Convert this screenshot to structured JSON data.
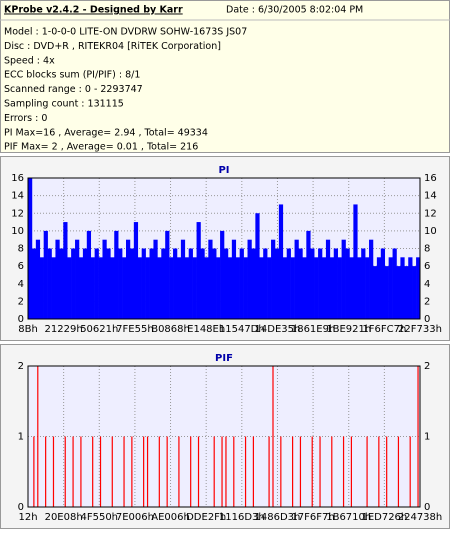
{
  "header": {
    "title": "KProbe v2.4.2 - Designed by Karr",
    "date": "Date : 6/30/2005 8:02:04 PM",
    "lines": [
      "Model : 1-0-0-0 LITE-ON DVDRW SOHW-1673S JS07",
      "Disc : DVD+R , RITEKR04 [RiTEK Corporation]",
      "Speed : 4x",
      "ECC blocks sum (PI/PIF) : 8/1",
      "Scanned range : 0 - 2293747",
      "Sampling count : 131115",
      "Errors : 0",
      "PI Max=16 , Average= 2.94 , Total= 49334",
      "PIF Max= 2 , Average= 0.01 , Total= 216"
    ]
  },
  "chart_data": [
    {
      "type": "bar",
      "title": "PI",
      "color": "#0000ff",
      "grid": true,
      "ylim": [
        0,
        16
      ],
      "yticks": [
        0,
        2,
        4,
        6,
        8,
        10,
        12,
        14,
        16
      ],
      "x_labels": [
        "8Bh",
        "21229h",
        "50621h",
        "7FE55h",
        "B0868h",
        "E148Eh",
        "11547Dh",
        "14DE35h",
        "1861E9h",
        "1BE921h",
        "1F6FC7h",
        "22F733h"
      ],
      "values": [
        16,
        8,
        9,
        7,
        10,
        8,
        7,
        9,
        8,
        11,
        7,
        8,
        9,
        7,
        8,
        10,
        7,
        8,
        7,
        9,
        8,
        7,
        10,
        8,
        7,
        9,
        8,
        11,
        7,
        8,
        7,
        8,
        9,
        7,
        8,
        10,
        7,
        8,
        7,
        9,
        7,
        8,
        7,
        11,
        8,
        7,
        9,
        8,
        7,
        10,
        8,
        7,
        9,
        7,
        8,
        7,
        9,
        8,
        12,
        7,
        8,
        7,
        9,
        8,
        13,
        7,
        8,
        7,
        9,
        8,
        7,
        10,
        8,
        7,
        8,
        7,
        9,
        7,
        8,
        7,
        9,
        8,
        7,
        13,
        7,
        8,
        7,
        9,
        6,
        7,
        8,
        6,
        7,
        8,
        6,
        7,
        6,
        7,
        6,
        7
      ]
    },
    {
      "type": "spike",
      "title": "PIF",
      "color": "#ff0000",
      "grid": true,
      "ylim": [
        0,
        2
      ],
      "yticks": [
        0,
        1,
        2
      ],
      "x_labels": [
        "12h",
        "20E08h",
        "4F550h",
        "7E006h",
        "AE006h",
        "DDE2Fh",
        "1116D3h",
        "1486D3h",
        "17F6F7h",
        "1B6710h",
        "1ED726h",
        "224738h"
      ],
      "values": [
        0,
        1,
        2,
        0,
        1,
        0,
        1,
        0,
        0,
        1,
        0,
        1,
        0,
        1,
        0,
        0,
        1,
        0,
        1,
        0,
        0,
        1,
        0,
        0,
        1,
        0,
        1,
        0,
        0,
        1,
        1,
        0,
        0,
        1,
        0,
        1,
        0,
        0,
        1,
        0,
        0,
        1,
        0,
        1,
        0,
        0,
        0,
        1,
        0,
        1,
        1,
        0,
        1,
        0,
        0,
        1,
        0,
        1,
        0,
        0,
        0,
        1,
        2,
        0,
        1,
        0,
        0,
        1,
        0,
        1,
        0,
        0,
        1,
        0,
        1,
        0,
        0,
        1,
        0,
        0,
        1,
        0,
        1,
        0,
        0,
        0,
        1,
        0,
        0,
        1,
        0,
        1,
        0,
        0,
        1,
        0,
        0,
        1,
        0,
        2
      ]
    }
  ]
}
